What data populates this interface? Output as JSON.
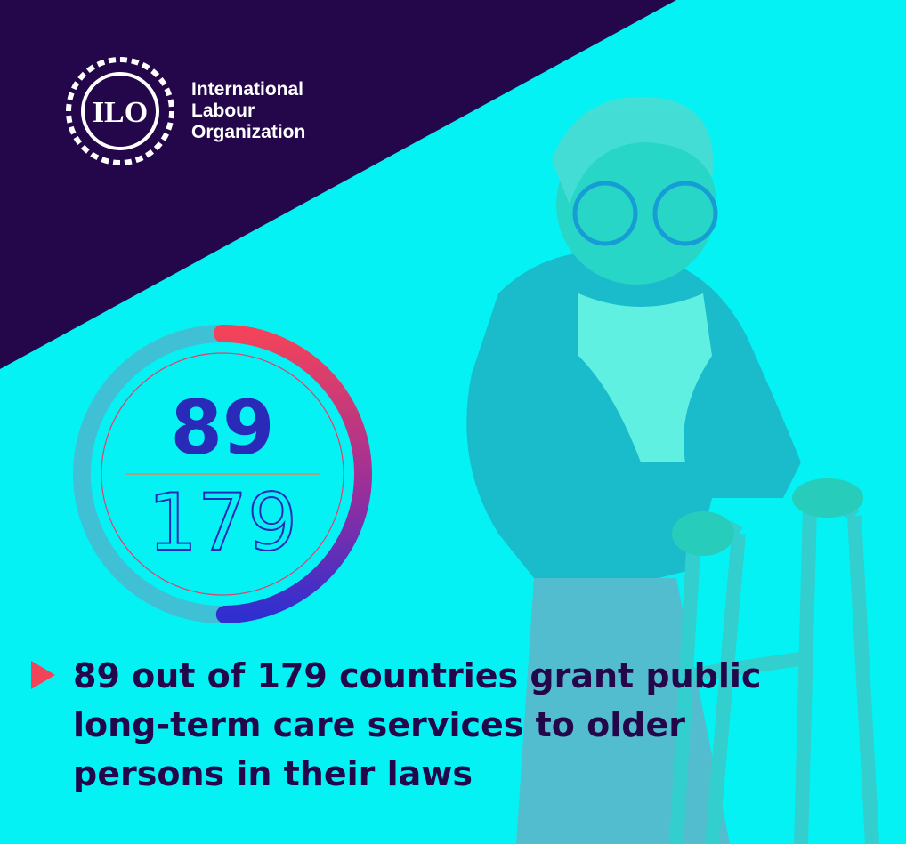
{
  "logo": {
    "emblem": "ILO",
    "name_lines": [
      "International",
      "Labour",
      "Organization"
    ]
  },
  "stat": {
    "value": 89,
    "total": 179
  },
  "caption_lines": [
    "89 out of 179 countries grant public",
    "long-term care services to older",
    "persons in their laws"
  ]
}
